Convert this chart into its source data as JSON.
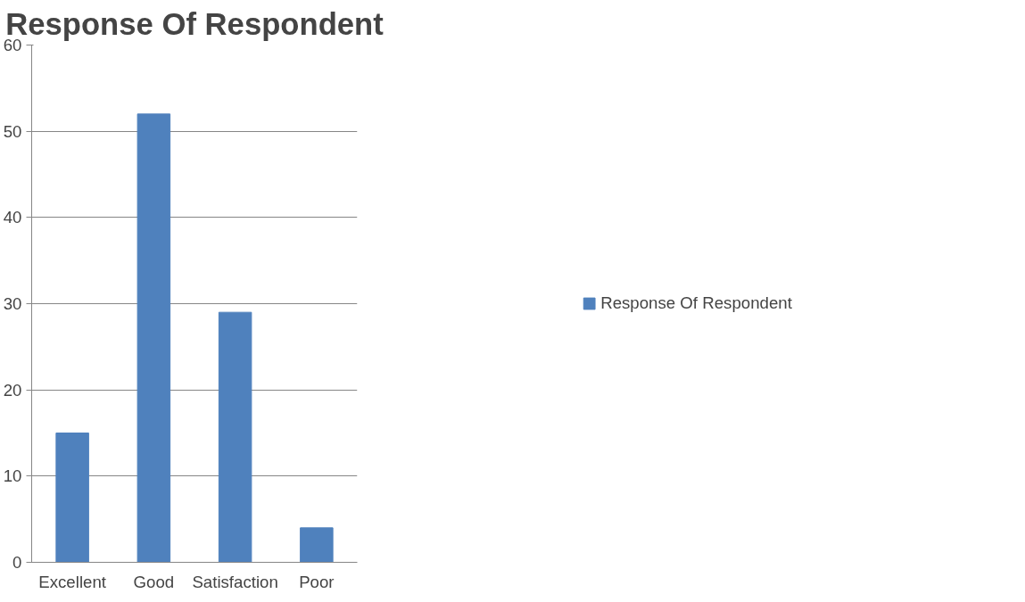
{
  "chart_data": {
    "type": "bar",
    "title": "Response Of Respondent",
    "categories": [
      "Excellent",
      "Good",
      "Satisfaction",
      "Poor"
    ],
    "series": [
      {
        "name": "Response Of Respondent",
        "color": "#4f81bd",
        "values": [
          15,
          52,
          29,
          4
        ]
      }
    ],
    "ylim": [
      0,
      60
    ],
    "yticks": [
      0,
      10,
      20,
      30,
      40,
      50,
      60
    ],
    "grid": "y",
    "legend": "right"
  }
}
